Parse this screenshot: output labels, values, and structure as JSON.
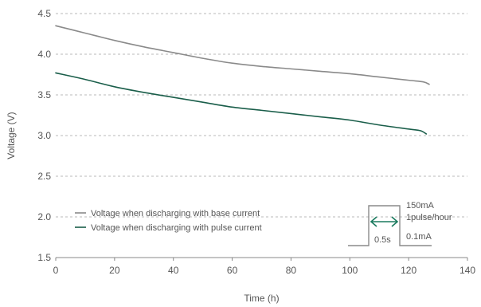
{
  "chart_data": {
    "type": "line",
    "title": "",
    "xlabel": "Time (h)",
    "ylabel": "Voltage (V)",
    "xlim": [
      0,
      140
    ],
    "ylim": [
      1.5,
      4.5
    ],
    "x_ticks": [
      "0",
      "20",
      "40",
      "60",
      "80",
      "100",
      "120",
      "140"
    ],
    "y_ticks": [
      "1.5",
      "2.0",
      "2.5",
      "3.0",
      "3.5",
      "4.0",
      "4.5"
    ],
    "grid": "horizontal dashed",
    "legend_position": "lower-left",
    "series": [
      {
        "name": "Voltage when discharging with base current",
        "color": "#8a8a8a",
        "x": [
          0,
          10,
          20,
          30,
          40,
          50,
          60,
          70,
          80,
          90,
          100,
          110,
          120,
          125,
          127
        ],
        "y": [
          4.35,
          4.26,
          4.17,
          4.09,
          4.02,
          3.95,
          3.89,
          3.85,
          3.82,
          3.79,
          3.76,
          3.72,
          3.68,
          3.66,
          3.63
        ]
      },
      {
        "name": "Voltage when discharging with pulse current",
        "color": "#1a5e4a",
        "x": [
          0,
          10,
          20,
          30,
          40,
          50,
          60,
          70,
          80,
          90,
          100,
          110,
          120,
          124,
          126
        ],
        "y": [
          3.77,
          3.69,
          3.6,
          3.53,
          3.47,
          3.41,
          3.35,
          3.31,
          3.27,
          3.23,
          3.19,
          3.13,
          3.08,
          3.06,
          3.02
        ]
      }
    ],
    "inset": {
      "pulse_current": "150mA",
      "pulse_rate": "1pulse/hour",
      "pulse_width": "0.5s",
      "base_current": "0.1mA",
      "line_color": "#8a8a8a",
      "arrow_color": "#1a7a5e"
    }
  }
}
